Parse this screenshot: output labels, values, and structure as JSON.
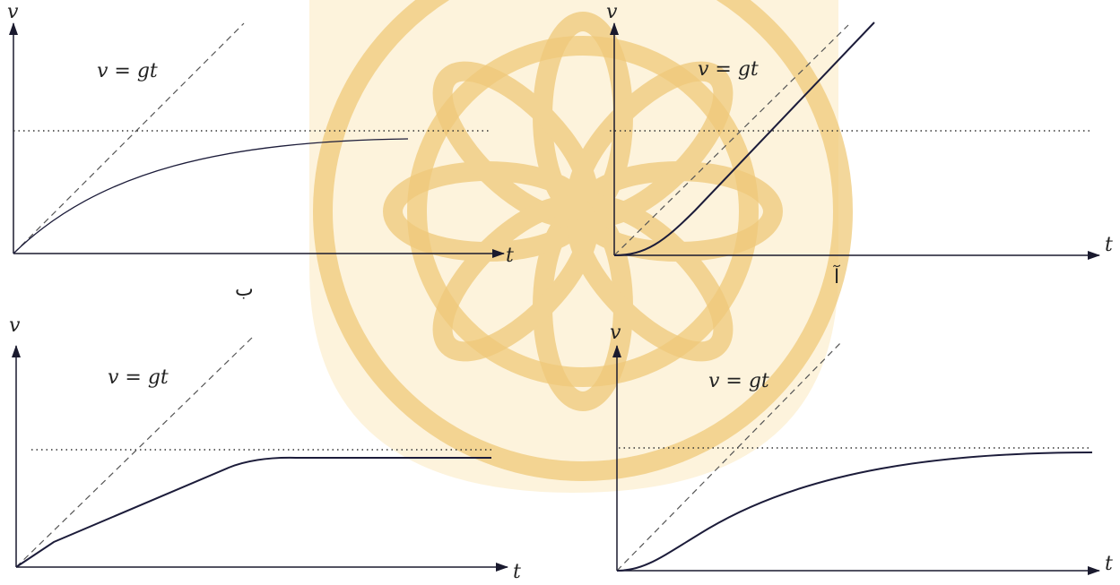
{
  "panels": [
    {
      "y_label": "v",
      "x_label": "t",
      "line_label": "v = gt",
      "caption": "ب"
    },
    {
      "y_label": "v",
      "x_label": "t",
      "line_label": "v = gt",
      "caption": "آ"
    },
    {
      "y_label": "v",
      "x_label": "t",
      "line_label": "v = gt"
    },
    {
      "y_label": "v",
      "x_label": "t",
      "line_label": "v = gt"
    }
  ]
}
